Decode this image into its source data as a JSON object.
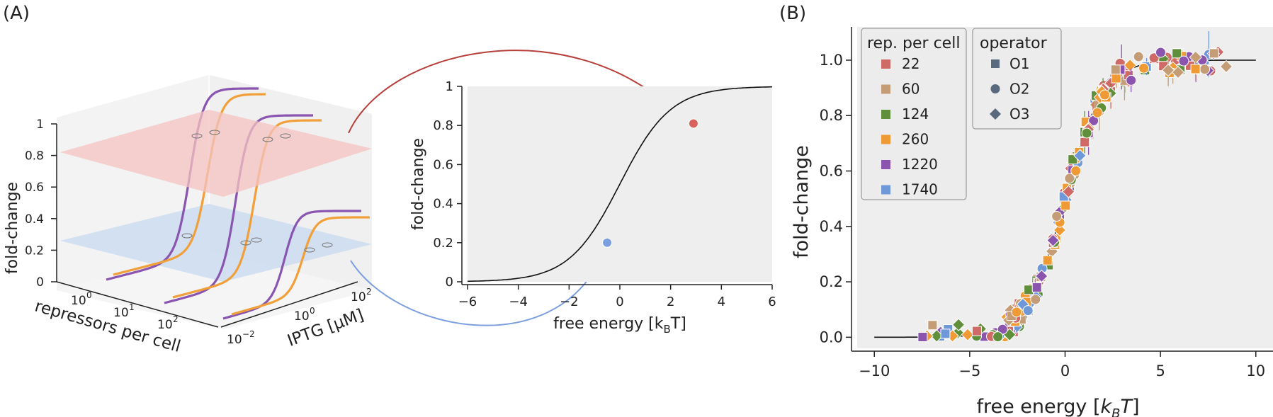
{
  "panel_labels": {
    "a": "(A)",
    "b": "(B)"
  },
  "colors": {
    "purple": "#8a55b0",
    "orange": "#f1a039",
    "red_plane": "#f4c3c1",
    "blue_plane": "#cbdcf1",
    "red_point": "#d9625d",
    "blue_point": "#7c9fdf",
    "arrow_red": "#b7403b",
    "arrow_blue": "#7c9fdf",
    "plot_bg": "#eeeeee"
  },
  "panel_a_3d": {
    "z_label": "fold-change",
    "z_ticks": [
      "0",
      "0.2",
      "0.4",
      "0.6",
      "0.8",
      "1"
    ],
    "x_label": "repressors per cell",
    "x_ticks": [
      "10",
      "10",
      "10"
    ],
    "x_tick_exp": [
      "0",
      "1",
      "2"
    ],
    "y_label": "IPTG [μM]",
    "y_ticks": [
      "10",
      "10",
      "10"
    ],
    "y_tick_exp": [
      "−2",
      "0",
      "2"
    ]
  },
  "chart_data": [
    {
      "type": "line",
      "id": "panel-a-collapse",
      "xlabel": "free energy [k",
      "xlabel_sub": "B",
      "xlabel_end": "T]",
      "ylabel": "fold-change",
      "xlim": [
        -6,
        6
      ],
      "ylim": [
        0,
        1
      ],
      "xticks": [
        -6,
        -4,
        -2,
        0,
        2,
        4,
        6
      ],
      "yticks": [
        0,
        0.2,
        0.4,
        0.6,
        0.8,
        1
      ],
      "ytick_labels": [
        "0",
        "0.2",
        "0.4",
        "0.6",
        "0.8",
        "1"
      ],
      "curve": "1/(1+exp(-x))",
      "highlight_points": [
        {
          "x": 2.9,
          "y": 0.81,
          "color": "#d9625d"
        },
        {
          "x": -0.5,
          "y": 0.2,
          "color": "#7c9fdf"
        }
      ]
    },
    {
      "type": "scatter",
      "id": "panel-b-collapse",
      "xlabel": "free energy [",
      "xlabel_italic": "k",
      "xlabel_sub": "B",
      "xlabel_italic2": "T",
      "xlabel_end": "]",
      "ylabel": "fold-change",
      "xlim": [
        -10,
        10
      ],
      "ylim": [
        0,
        1.1
      ],
      "xticks": [
        -10,
        -5,
        0,
        5,
        10
      ],
      "yticks": [
        0.0,
        0.2,
        0.4,
        0.6,
        0.8,
        1.0
      ],
      "ytick_labels": [
        "0.0",
        "0.2",
        "0.4",
        "0.6",
        "0.8",
        "1.0"
      ],
      "grid": false,
      "curve": "1/(1+exp(-x))",
      "legend_repressors": {
        "title": "rep. per cell",
        "entries": [
          {
            "label": "22",
            "color": "#cf6a67"
          },
          {
            "label": "60",
            "color": "#c49c76"
          },
          {
            "label": "124",
            "color": "#5f8f3b"
          },
          {
            "label": "260",
            "color": "#ef9a34"
          },
          {
            "label": "1220",
            "color": "#8c55ad"
          },
          {
            "label": "1740",
            "color": "#6f98d8"
          }
        ]
      },
      "legend_operator": {
        "title": "operator",
        "entries": [
          {
            "label": "O1",
            "marker": "square"
          },
          {
            "label": "O2",
            "marker": "circle"
          },
          {
            "label": "O3",
            "marker": "diamond"
          }
        ]
      },
      "data_range_x": [
        -7.5,
        8.8
      ],
      "data_note_offset": "points lie on the theory curve with scatter"
    }
  ]
}
